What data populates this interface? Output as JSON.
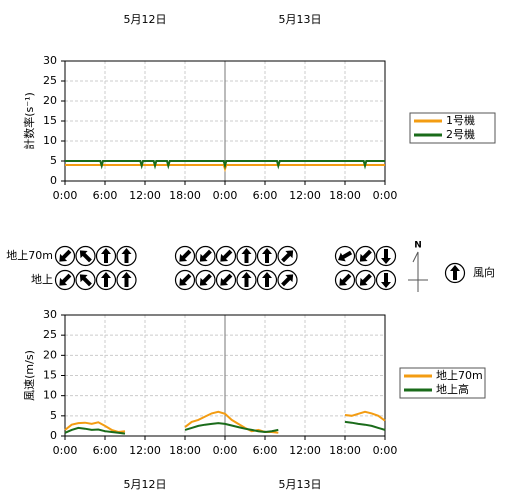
{
  "header": {
    "dates": [
      "5月12日",
      "5月13日"
    ]
  },
  "footer": {
    "dates": [
      "5月12日",
      "5月13日"
    ]
  },
  "chart_data": [
    {
      "type": "line",
      "ylabel": "計数率(s⁻¹)",
      "x": [
        0,
        5.3,
        5.5,
        5.7,
        11.3,
        11.5,
        11.7,
        13.3,
        13.5,
        13.7,
        15.3,
        15.5,
        15.7,
        23.8,
        24,
        24.2,
        31.8,
        32,
        32.2,
        44.8,
        45,
        45.2,
        48
      ],
      "series": [
        {
          "name": "1号機",
          "color": "#f39c12",
          "values": [
            4,
            4,
            4,
            4,
            4,
            4,
            4,
            4,
            4,
            4,
            4,
            4,
            4,
            4,
            3,
            4,
            4,
            4,
            4,
            4,
            4,
            4,
            4
          ]
        },
        {
          "name": "2号機",
          "color": "#1a6b1a",
          "values": [
            5,
            5,
            3.8,
            5,
            5,
            3.8,
            5,
            5,
            3.8,
            5,
            5,
            3.8,
            5,
            5,
            3.8,
            5,
            5,
            3.8,
            5,
            5,
            3.8,
            5,
            5
          ]
        }
      ],
      "xlim": [
        0,
        48
      ],
      "xticks": [
        {
          "value": 0,
          "label": "0:00"
        },
        {
          "value": 6,
          "label": "6:00"
        },
        {
          "value": 12,
          "label": "12:00"
        },
        {
          "value": 18,
          "label": "18:00"
        },
        {
          "value": 24,
          "label": "0:00"
        },
        {
          "value": 30,
          "label": "6:00"
        },
        {
          "value": 36,
          "label": "12:00"
        },
        {
          "value": 42,
          "label": "18:00"
        },
        {
          "value": 48,
          "label": "0:00"
        }
      ],
      "ylim": [
        0,
        30
      ],
      "yticks": [
        0,
        5,
        10,
        15,
        20,
        25,
        30
      ],
      "grid": true
    },
    {
      "type": "line",
      "ylabel": "風速(m/s)",
      "x": [
        0,
        1,
        2,
        3,
        4,
        5,
        6,
        7,
        8,
        9,
        13,
        18,
        19,
        20,
        21,
        22,
        23,
        24,
        25,
        26,
        27,
        28,
        29,
        30,
        31,
        32,
        38,
        42,
        43,
        44,
        45,
        46,
        47,
        48
      ],
      "series": [
        {
          "name": "地上70m",
          "color": "#f39c12",
          "values": [
            1.5,
            2.8,
            3.2,
            3.3,
            3.0,
            3.4,
            2.5,
            1.5,
            1.0,
            1.2,
            null,
            2.2,
            3.5,
            4.0,
            4.8,
            5.6,
            6.0,
            5.5,
            4.0,
            3.0,
            2.0,
            1.2,
            1.5,
            1.0,
            1.0,
            0.8,
            null,
            5.2,
            5.0,
            5.5,
            6.0,
            5.6,
            5.0,
            3.8
          ]
        },
        {
          "name": "地上高",
          "color": "#1a6b1a",
          "values": [
            0.8,
            1.5,
            2.0,
            1.8,
            1.5,
            1.6,
            1.2,
            1.0,
            0.8,
            0.6,
            null,
            1.5,
            2.0,
            2.5,
            2.8,
            3.0,
            3.2,
            3.0,
            2.6,
            2.2,
            1.8,
            1.5,
            1.2,
            1.0,
            1.2,
            1.5,
            null,
            3.5,
            3.3,
            3.0,
            2.8,
            2.5,
            2.0,
            1.5
          ]
        }
      ],
      "xlim": [
        0,
        48
      ],
      "xticks": [
        {
          "value": 0,
          "label": "0:00"
        },
        {
          "value": 6,
          "label": "6:00"
        },
        {
          "value": 12,
          "label": "12:00"
        },
        {
          "value": 18,
          "label": "18:00"
        },
        {
          "value": 24,
          "label": "0:00"
        },
        {
          "value": 30,
          "label": "6:00"
        },
        {
          "value": 36,
          "label": "12:00"
        },
        {
          "value": 42,
          "label": "18:00"
        },
        {
          "value": 48,
          "label": "0:00"
        }
      ],
      "ylim": [
        0,
        30
      ],
      "yticks": [
        0,
        5,
        10,
        15,
        20,
        25,
        30
      ],
      "grid": true
    }
  ],
  "wind": {
    "rows": [
      {
        "label": "地上70m",
        "groups": [
          [
            225,
            315,
            0,
            0
          ],
          [
            225,
            225,
            225,
            0,
            0,
            45
          ],
          [
            240,
            225,
            180
          ]
        ]
      },
      {
        "label": "地上",
        "groups": [
          [
            225,
            315,
            0,
            0
          ],
          [
            225,
            225,
            225,
            0,
            0,
            45
          ],
          [
            225,
            225,
            180
          ]
        ]
      }
    ],
    "north": "N",
    "legend": "風向",
    "legend_direction": 0
  }
}
